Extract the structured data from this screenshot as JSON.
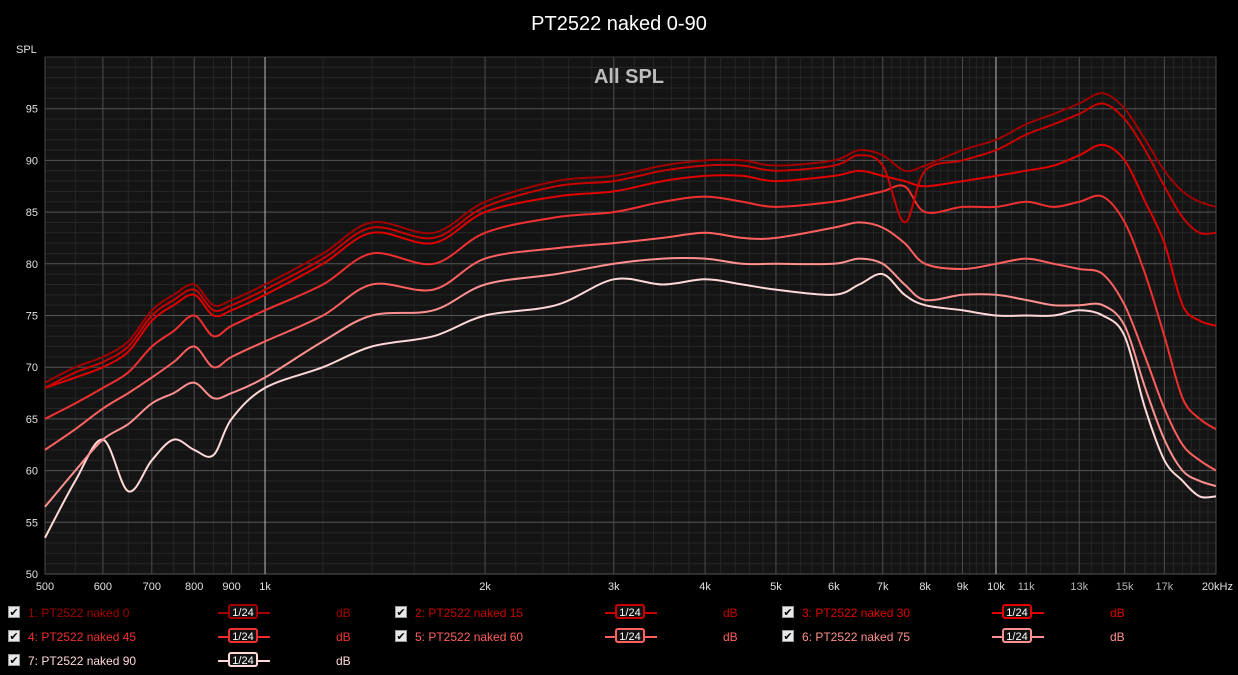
{
  "chart_data": {
    "type": "line",
    "title": "PT2522 naked 0-90",
    "subtitle": "All SPL",
    "ylabel": "SPL",
    "xlabel": "",
    "x_scale": "log",
    "xlim": [
      500,
      20000
    ],
    "ylim": [
      50,
      100
    ],
    "y_ticks": [
      50,
      55,
      60,
      65,
      70,
      75,
      80,
      85,
      90,
      95
    ],
    "x_ticks": [
      {
        "value": 500,
        "label": "500"
      },
      {
        "value": 600,
        "label": "600"
      },
      {
        "value": 700,
        "label": "700"
      },
      {
        "value": 800,
        "label": "800"
      },
      {
        "value": 900,
        "label": "900"
      },
      {
        "value": 1000,
        "label": "1k"
      },
      {
        "value": 2000,
        "label": "2k"
      },
      {
        "value": 3000,
        "label": "3k"
      },
      {
        "value": 4000,
        "label": "4k"
      },
      {
        "value": 5000,
        "label": "5k"
      },
      {
        "value": 6000,
        "label": "6k"
      },
      {
        "value": 7000,
        "label": "7k"
      },
      {
        "value": 8000,
        "label": "8k"
      },
      {
        "value": 9000,
        "label": "9k"
      },
      {
        "value": 10000,
        "label": "10k"
      },
      {
        "value": 11000,
        "label": "11k"
      },
      {
        "value": 13000,
        "label": "13k"
      },
      {
        "value": 15000,
        "label": "15k"
      },
      {
        "value": 17000,
        "label": "17k"
      },
      {
        "value": 20000,
        "label": "20kHz"
      }
    ],
    "grid": true,
    "legend_position": "bottom",
    "x": [
      500,
      550,
      600,
      650,
      700,
      750,
      800,
      850,
      900,
      1000,
      1200,
      1400,
      1700,
      2000,
      2500,
      3000,
      3500,
      4000,
      4500,
      5000,
      6000,
      6500,
      7000,
      7500,
      8000,
      9000,
      10000,
      11000,
      12000,
      13000,
      14000,
      15000,
      16000,
      17000,
      18000,
      19000,
      20000
    ],
    "series": [
      {
        "name": "1: PT2522 naked 0",
        "color": "#a00000",
        "smoothing": "1/24",
        "unit": "dB",
        "values": [
          68.5,
          70,
          71,
          72.5,
          75.5,
          77,
          78,
          76,
          76.5,
          78,
          81,
          84,
          83,
          86,
          88,
          88.5,
          89.5,
          90,
          90,
          89.5,
          90,
          91,
          90.5,
          89,
          89.5,
          91,
          92,
          93.5,
          94.5,
          95.5,
          96.5,
          95,
          92,
          89,
          87,
          86,
          85.5
        ]
      },
      {
        "name": "2: PT2522 naked 15",
        "color": "#c80000",
        "smoothing": "1/24",
        "unit": "dB",
        "values": [
          68,
          69.5,
          70.5,
          72,
          75,
          76.5,
          77.5,
          75.5,
          76,
          77.5,
          80.5,
          83.5,
          82.5,
          85.5,
          87.5,
          88,
          89,
          89.5,
          89.5,
          89,
          89.5,
          90.5,
          89.5,
          84,
          89,
          90,
          91,
          92.5,
          93.5,
          94.5,
          95.5,
          94,
          91,
          87.5,
          84.5,
          83,
          83
        ]
      },
      {
        "name": "3: PT2522 naked 30",
        "color": "#e00000",
        "smoothing": "1/24",
        "unit": "dB",
        "values": [
          68,
          69,
          70,
          71.5,
          74.5,
          76,
          77,
          75,
          75.5,
          77,
          80,
          83,
          82,
          85,
          86.5,
          87,
          88,
          88.5,
          88.5,
          88,
          88.5,
          89,
          88.5,
          88,
          87.5,
          88,
          88.5,
          89,
          89.5,
          90.5,
          91.5,
          90,
          86,
          82,
          76,
          74.5,
          74
        ]
      },
      {
        "name": "4: PT2522 naked 45",
        "color": "#f03030",
        "smoothing": "1/24",
        "unit": "dB",
        "values": [
          65,
          66.5,
          68,
          69.5,
          72,
          73.5,
          75,
          73,
          74,
          75.5,
          78,
          81,
          80,
          83,
          84.5,
          85,
          86,
          86.5,
          86,
          85.5,
          86,
          86.5,
          87,
          87.5,
          85,
          85.5,
          85.5,
          86,
          85.5,
          86,
          86.5,
          84,
          79,
          73,
          67,
          65,
          64
        ]
      },
      {
        "name": "5: PT2522 naked 60",
        "color": "#ff6060",
        "smoothing": "1/24",
        "unit": "dB",
        "values": [
          62,
          64,
          66,
          67.5,
          69,
          70.5,
          72,
          70,
          71,
          72.5,
          75,
          78,
          77.5,
          80.5,
          81.5,
          82,
          82.5,
          83,
          82.5,
          82.5,
          83.5,
          84,
          83.5,
          82,
          80,
          79.5,
          80,
          80.5,
          80,
          79.5,
          79,
          76,
          71,
          66,
          62.5,
          61,
          60
        ]
      },
      {
        "name": "6: PT2522 naked 75",
        "color": "#ff9090",
        "smoothing": "1/24",
        "unit": "dB",
        "values": [
          56.5,
          60,
          63,
          64.5,
          66.5,
          67.5,
          68.5,
          67,
          67.5,
          69,
          72.5,
          75,
          75.5,
          78,
          79,
          80,
          80.5,
          80.5,
          80,
          80,
          80,
          80.5,
          80,
          78,
          76.5,
          77,
          77,
          76.5,
          76,
          76,
          76,
          74,
          68,
          63,
          60,
          59,
          58.5
        ]
      },
      {
        "name": "7: PT2522 naked 90",
        "color": "#ffd8d8",
        "smoothing": "1/24",
        "unit": "dB",
        "values": [
          53.5,
          59,
          63,
          58,
          61,
          63,
          62,
          61.5,
          65,
          68,
          70,
          72,
          73,
          75,
          76,
          78.5,
          78,
          78.5,
          78,
          77.5,
          77,
          78,
          79,
          77,
          76,
          75.5,
          75,
          75,
          75,
          75.5,
          75,
          73,
          66,
          61,
          59,
          57.5,
          57.5
        ]
      }
    ]
  }
}
